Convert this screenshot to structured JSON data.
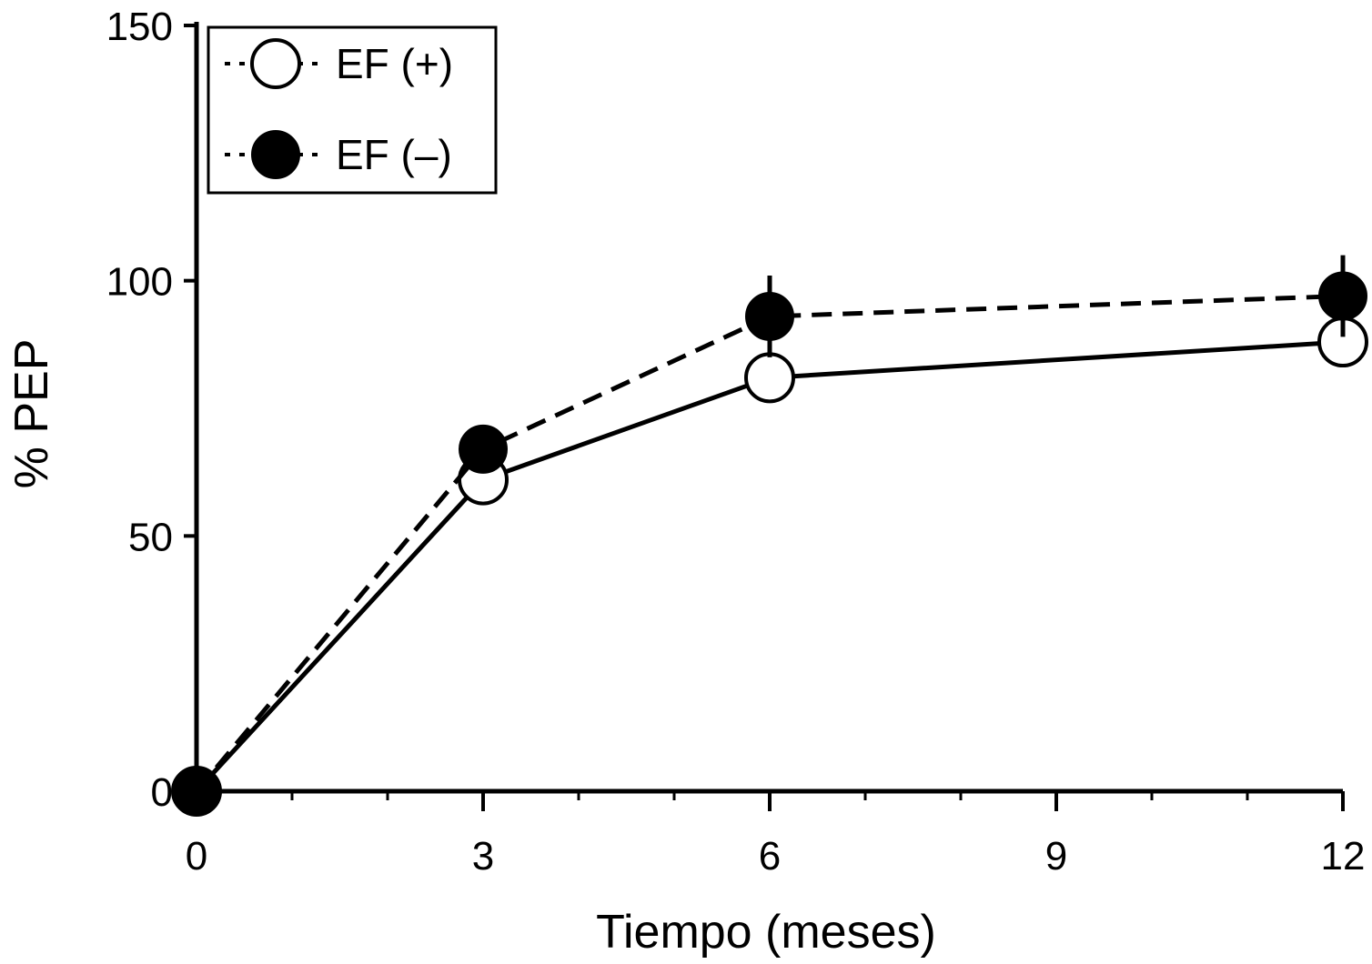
{
  "chart_data": {
    "type": "line",
    "title": "",
    "xlabel": "Tiempo (meses)",
    "ylabel": "% PEP",
    "x": [
      0,
      3,
      6,
      12
    ],
    "xlim": [
      0,
      12
    ],
    "ylim": [
      0,
      150
    ],
    "x_ticks": [
      "0",
      "3",
      "6",
      "9",
      "12"
    ],
    "y_ticks": [
      "0",
      "50",
      "100",
      "150"
    ],
    "grid": false,
    "legend_position": "top-left",
    "series": [
      {
        "name": "EF (+)",
        "values": [
          0,
          61,
          81,
          88
        ],
        "error": [
          0,
          3,
          4,
          4
        ],
        "marker": "open-circle",
        "line_style": "solid",
        "color": "#000000"
      },
      {
        "name": "EF (–)",
        "values": [
          0,
          67,
          93,
          97
        ],
        "error": [
          0,
          3,
          8,
          8
        ],
        "marker": "filled-circle",
        "line_style": "dashed",
        "color": "#000000"
      }
    ]
  }
}
